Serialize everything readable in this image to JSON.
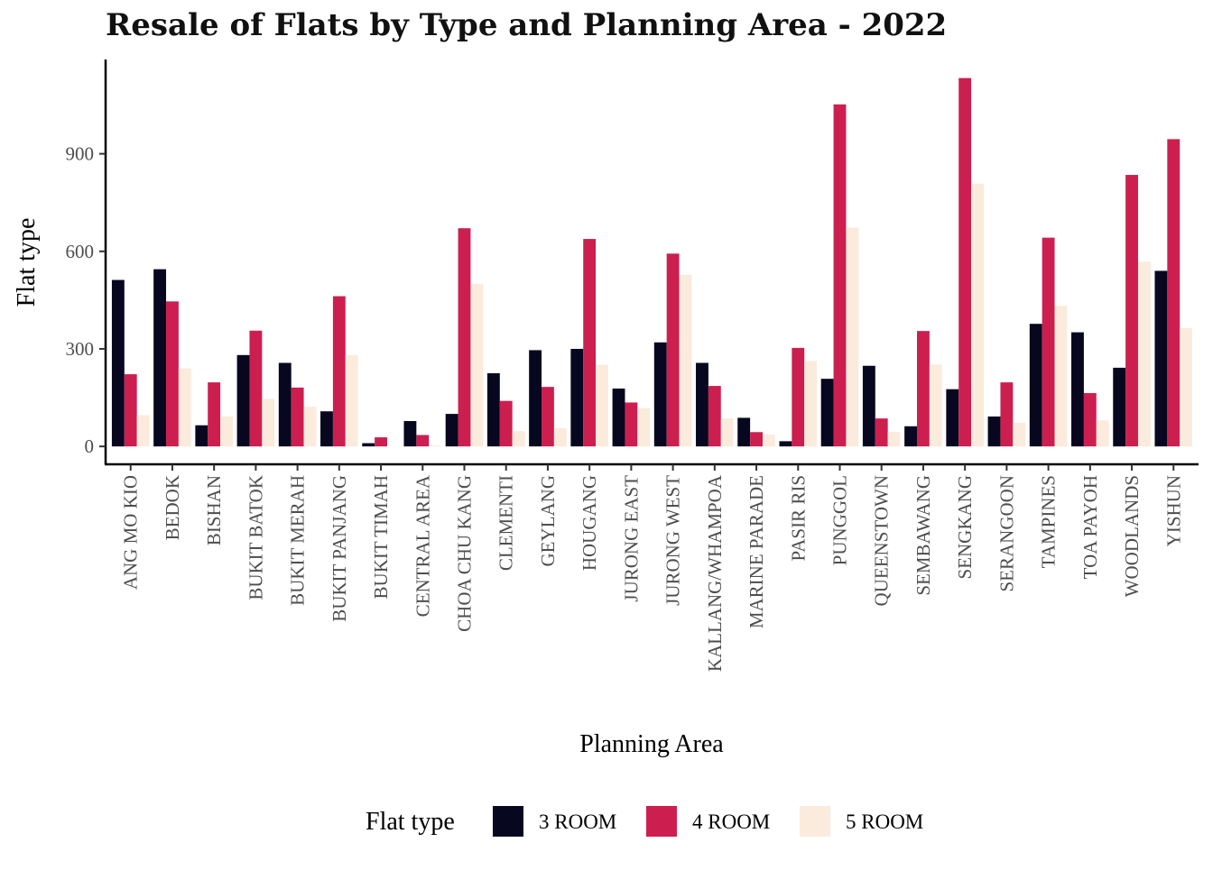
{
  "chart_data": {
    "type": "bar",
    "title": "Resale of Flats by Type and Planning Area - 2022",
    "xlabel": "Planning Area",
    "ylabel": "Flat type",
    "ylim": [
      -55,
      1190
    ],
    "yticks": [
      0,
      300,
      600,
      900
    ],
    "grid": false,
    "legend_position": "bottom",
    "legend_title": "Flat type",
    "categories": [
      "ANG MO KIO",
      "BEDOK",
      "BISHAN",
      "BUKIT BATOK",
      "BUKIT MERAH",
      "BUKIT PANJANG",
      "BUKIT TIMAH",
      "CENTRAL AREA",
      "CHOA CHU KANG",
      "CLEMENTI",
      "GEYLANG",
      "HOUGANG",
      "JURONG EAST",
      "JURONG WEST",
      "KALLANG/WHAMPOA",
      "MARINE PARADE",
      "PASIR RIS",
      "PUNGGOL",
      "QUEENSTOWN",
      "SEMBAWANG",
      "SENGKANG",
      "SERANGOON",
      "TAMPINES",
      "TOA PAYOH",
      "WOODLANDS",
      "YISHUN"
    ],
    "series": [
      {
        "name": "3 ROOM",
        "color": "#070820",
        "values": [
          512,
          545,
          65,
          281,
          257,
          108,
          10,
          78,
          100,
          225,
          296,
          300,
          178,
          320,
          257,
          88,
          16,
          208,
          248,
          62,
          176,
          92,
          377,
          351,
          242,
          540
        ]
      },
      {
        "name": "4 ROOM",
        "color": "#cc1f50",
        "values": [
          222,
          446,
          197,
          356,
          181,
          462,
          28,
          35,
          671,
          140,
          183,
          638,
          135,
          593,
          186,
          44,
          303,
          1052,
          86,
          355,
          1133,
          197,
          642,
          164,
          835,
          945
        ]
      },
      {
        "name": "5 ROOM",
        "color": "#fbebdc",
        "values": [
          96,
          240,
          92,
          146,
          122,
          281,
          0,
          3,
          500,
          47,
          56,
          251,
          118,
          528,
          86,
          36,
          263,
          673,
          45,
          252,
          808,
          73,
          432,
          80,
          568,
          364
        ]
      }
    ]
  }
}
